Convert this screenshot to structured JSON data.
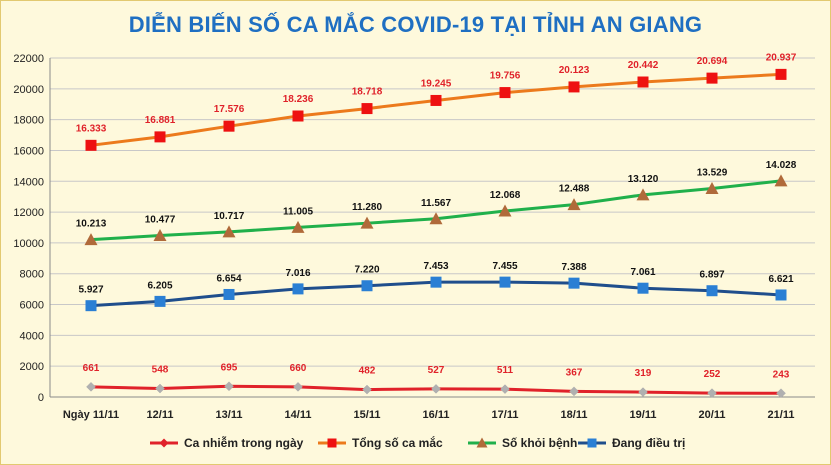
{
  "chart_data": {
    "type": "line",
    "title": "DIỄN BIẾN SỐ CA MẮC COVID-19 TẠI TỈNH AN GIANG",
    "categories": [
      "Ngày 11/11",
      "12/11",
      "13/11",
      "14/11",
      "15/11",
      "16/11",
      "17/11",
      "18/11",
      "19/11",
      "20/11",
      "21/11"
    ],
    "ylim": [
      0,
      22000
    ],
    "yticks": [
      0,
      2000,
      4000,
      6000,
      8000,
      10000,
      12000,
      14000,
      16000,
      18000,
      20000,
      22000
    ],
    "grid": true,
    "legend_position": "bottom",
    "series": [
      {
        "name": "Ca nhiễm trong ngày",
        "color": "#e0222a",
        "label_color": "#e0222a",
        "marker": "diamond",
        "values": [
          661,
          548,
          695,
          660,
          482,
          527,
          511,
          367,
          319,
          252,
          243
        ],
        "labels": [
          "661",
          "548",
          "695",
          "660",
          "482",
          "527",
          "511",
          "367",
          "319",
          "252",
          "243"
        ]
      },
      {
        "name": "Tổng số ca mắc",
        "color": "#ec7a1c",
        "marker_color": "#ee1111",
        "label_color": "#e0222a",
        "marker": "square",
        "values": [
          16333,
          16881,
          17576,
          18236,
          18718,
          19245,
          19756,
          20123,
          20442,
          20694,
          20937
        ],
        "labels": [
          "16.333",
          "16.881",
          "17.576",
          "18.236",
          "18.718",
          "19.245",
          "19.756",
          "20.123",
          "20.442",
          "20.694",
          "20.937"
        ]
      },
      {
        "name": "Số khỏi bệnh",
        "color": "#20b04b",
        "marker_color": "#b06a3a",
        "label_color": "#111111",
        "marker": "triangle",
        "values": [
          10213,
          10477,
          10717,
          11005,
          11280,
          11567,
          12068,
          12488,
          13120,
          13529,
          14028
        ],
        "labels": [
          "10.213",
          "10.477",
          "10.717",
          "11.005",
          "11.280",
          "11.567",
          "12.068",
          "12.488",
          "13.120",
          "13.529",
          "14.028"
        ]
      },
      {
        "name": "Đang điều trị",
        "color": "#1f4e8c",
        "marker_color": "#2a7fd4",
        "label_color": "#111111",
        "marker": "square",
        "values": [
          5927,
          6205,
          6654,
          7016,
          7220,
          7453,
          7455,
          7388,
          7061,
          6897,
          6621
        ],
        "labels": [
          "5.927",
          "6.205",
          "6.654",
          "7.016",
          "7.220",
          "7.453",
          "7.455",
          "7.388",
          "7.061",
          "6.897",
          "6.621"
        ]
      }
    ]
  }
}
